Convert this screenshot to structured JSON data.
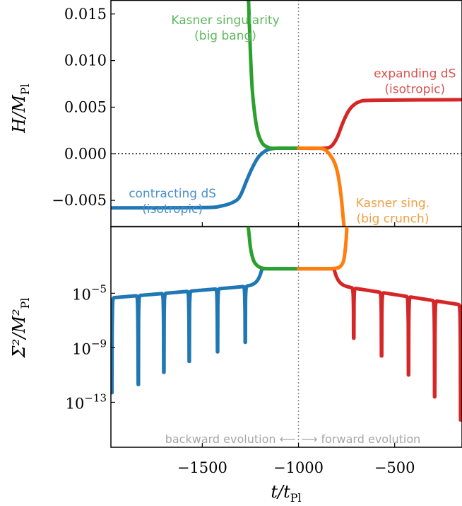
{
  "chart_data": [
    {
      "panel": "top",
      "type": "line",
      "ylabel": "H/M",
      "ylabel_sub": "Pl",
      "xlim": [
        -1975,
        -150
      ],
      "ylim": [
        -0.0078,
        0.0165
      ],
      "yticks": [
        -0.005,
        0.0,
        0.005,
        0.01,
        0.015
      ],
      "ytick_labels": [
        "−0.005",
        "0.000",
        "0.005",
        "0.010",
        "0.015"
      ],
      "reference_lines": {
        "horizontal_y": 0.0,
        "vertical_x": -1000
      },
      "series": [
        {
          "color": "#1f77b4",
          "points": [
            [
              -1975,
              -0.0058
            ],
            [
              -1500,
              -0.00577
            ],
            [
              -1400,
              -0.0056
            ],
            [
              -1330,
              -0.0051
            ],
            [
              -1300,
              -0.0044
            ],
            [
              -1270,
              -0.0029
            ],
            [
              -1240,
              -0.0015
            ],
            [
              -1210,
              -0.0004
            ],
            [
              -1180,
              0.0002
            ],
            [
              -1150,
              0.0005
            ],
            [
              -1100,
              0.0006
            ],
            [
              -1000,
              0.0006
            ]
          ]
        },
        {
          "color": "#2ca02c",
          "points": [
            [
              -1260,
              0.0167
            ],
            [
              -1250,
              0.011
            ],
            [
              -1240,
              0.0068
            ],
            [
              -1225,
              0.0039
            ],
            [
              -1210,
              0.0022
            ],
            [
              -1190,
              0.0012
            ],
            [
              -1170,
              0.0008
            ],
            [
              -1140,
              0.0006
            ],
            [
              -1100,
              0.0006
            ],
            [
              -1000,
              0.0006
            ]
          ]
        },
        {
          "color": "#d62728",
          "points": [
            [
              -1000,
              0.0006
            ],
            [
              -870,
              0.0006
            ],
            [
              -830,
              0.0008
            ],
            [
              -800,
              0.0017
            ],
            [
              -770,
              0.0033
            ],
            [
              -745,
              0.0044
            ],
            [
              -720,
              0.0051
            ],
            [
              -680,
              0.0056
            ],
            [
              -600,
              0.00575
            ],
            [
              -150,
              0.0058
            ]
          ]
        },
        {
          "color": "#ff7f0e",
          "points": [
            [
              -1000,
              0.0006
            ],
            [
              -900,
              0.0006
            ],
            [
              -860,
              0.0004
            ],
            [
              -830,
              -0.0003
            ],
            [
              -810,
              -0.0011
            ],
            [
              -795,
              -0.0022
            ],
            [
              -785,
              -0.0035
            ],
            [
              -776,
              -0.005
            ],
            [
              -768,
              -0.0068
            ],
            [
              -760,
              -0.0085
            ]
          ]
        }
      ],
      "annotations": [
        {
          "lines": [
            "Kasner singularity",
            "(big bang)"
          ],
          "color": "#5cb85c",
          "x": -1380,
          "y": 0.0139
        },
        {
          "lines": [
            "expanding dS",
            "(isotropic)"
          ],
          "color": "#d9534f",
          "x": -395,
          "y": 0.0082
        },
        {
          "lines": [
            "contracting dS",
            "(isotropic)"
          ],
          "color": "#4a90c8",
          "x": -1655,
          "y": -0.0047
        },
        {
          "lines": [
            "Kasner sing.",
            "(big crunch)"
          ],
          "color": "#f0a040",
          "x": -510,
          "y": -0.0057
        }
      ]
    },
    {
      "panel": "bottom",
      "type": "line",
      "yscale": "log",
      "ylabel": "Σ²/M²",
      "ylabel_sub": "Pl",
      "xlabel": "t/t",
      "xlabel_sub": "Pl",
      "xlim": [
        -1975,
        -150
      ],
      "ylim_exponent": [
        -16.3,
        -0.1
      ],
      "yticks_exponent": [
        -5,
        -9,
        -13
      ],
      "ytick_labels": [
        "10",
        "10",
        "10"
      ],
      "ytick_exponent_labels": [
        "−5",
        "−9",
        "−13"
      ],
      "xticks": [
        -1500,
        -1000,
        -500
      ],
      "xtick_labels": [
        "−1500",
        "−1000",
        "−500"
      ],
      "oscillation_series": [
        {
          "color": "#1f77b4",
          "side": "backward",
          "troughs": [
            [
              -1970,
              -12.3
            ],
            [
              -1833,
              -11.7
            ],
            [
              -1700,
              -10.8
            ],
            [
              -1568,
              -10.0
            ],
            [
              -1421,
              -9.3
            ],
            [
              -1277,
              -8.6
            ]
          ]
        },
        {
          "color": "#d62728",
          "side": "forward",
          "troughs": [
            [
              -713,
              -8.3
            ],
            [
              -568,
              -9.6
            ],
            [
              -428,
              -11.0
            ],
            [
              -292,
              -12.6
            ],
            [
              -157,
              -14.3
            ]
          ]
        }
      ],
      "series": [
        {
          "color": "#2ca02c",
          "points": [
            [
              -1262,
              0.0
            ],
            [
              -1256,
              -0.8
            ],
            [
              -1250,
              -1.6
            ],
            [
              -1242,
              -2.2
            ],
            [
              -1230,
              -2.7
            ],
            [
              -1212,
              -3.0
            ],
            [
              -1190,
              -3.15
            ],
            [
              -1150,
              -3.2
            ],
            [
              -1000,
              -3.2
            ]
          ]
        },
        {
          "color": "#ff7f0e",
          "points": [
            [
              -1000,
              -3.2
            ],
            [
              -850,
              -3.2
            ],
            [
              -800,
              -3.15
            ],
            [
              -780,
              -3.0
            ],
            [
              -765,
              -2.6
            ],
            [
              -757,
              -1.8
            ],
            [
              -752,
              -1.0
            ],
            [
              -748,
              0.0
            ]
          ]
        }
      ],
      "direction_text": {
        "backward": "backward evolution",
        "forward": "forward evolution",
        "arrow_left": "⟵",
        "arrow_right": "⟶"
      }
    }
  ]
}
